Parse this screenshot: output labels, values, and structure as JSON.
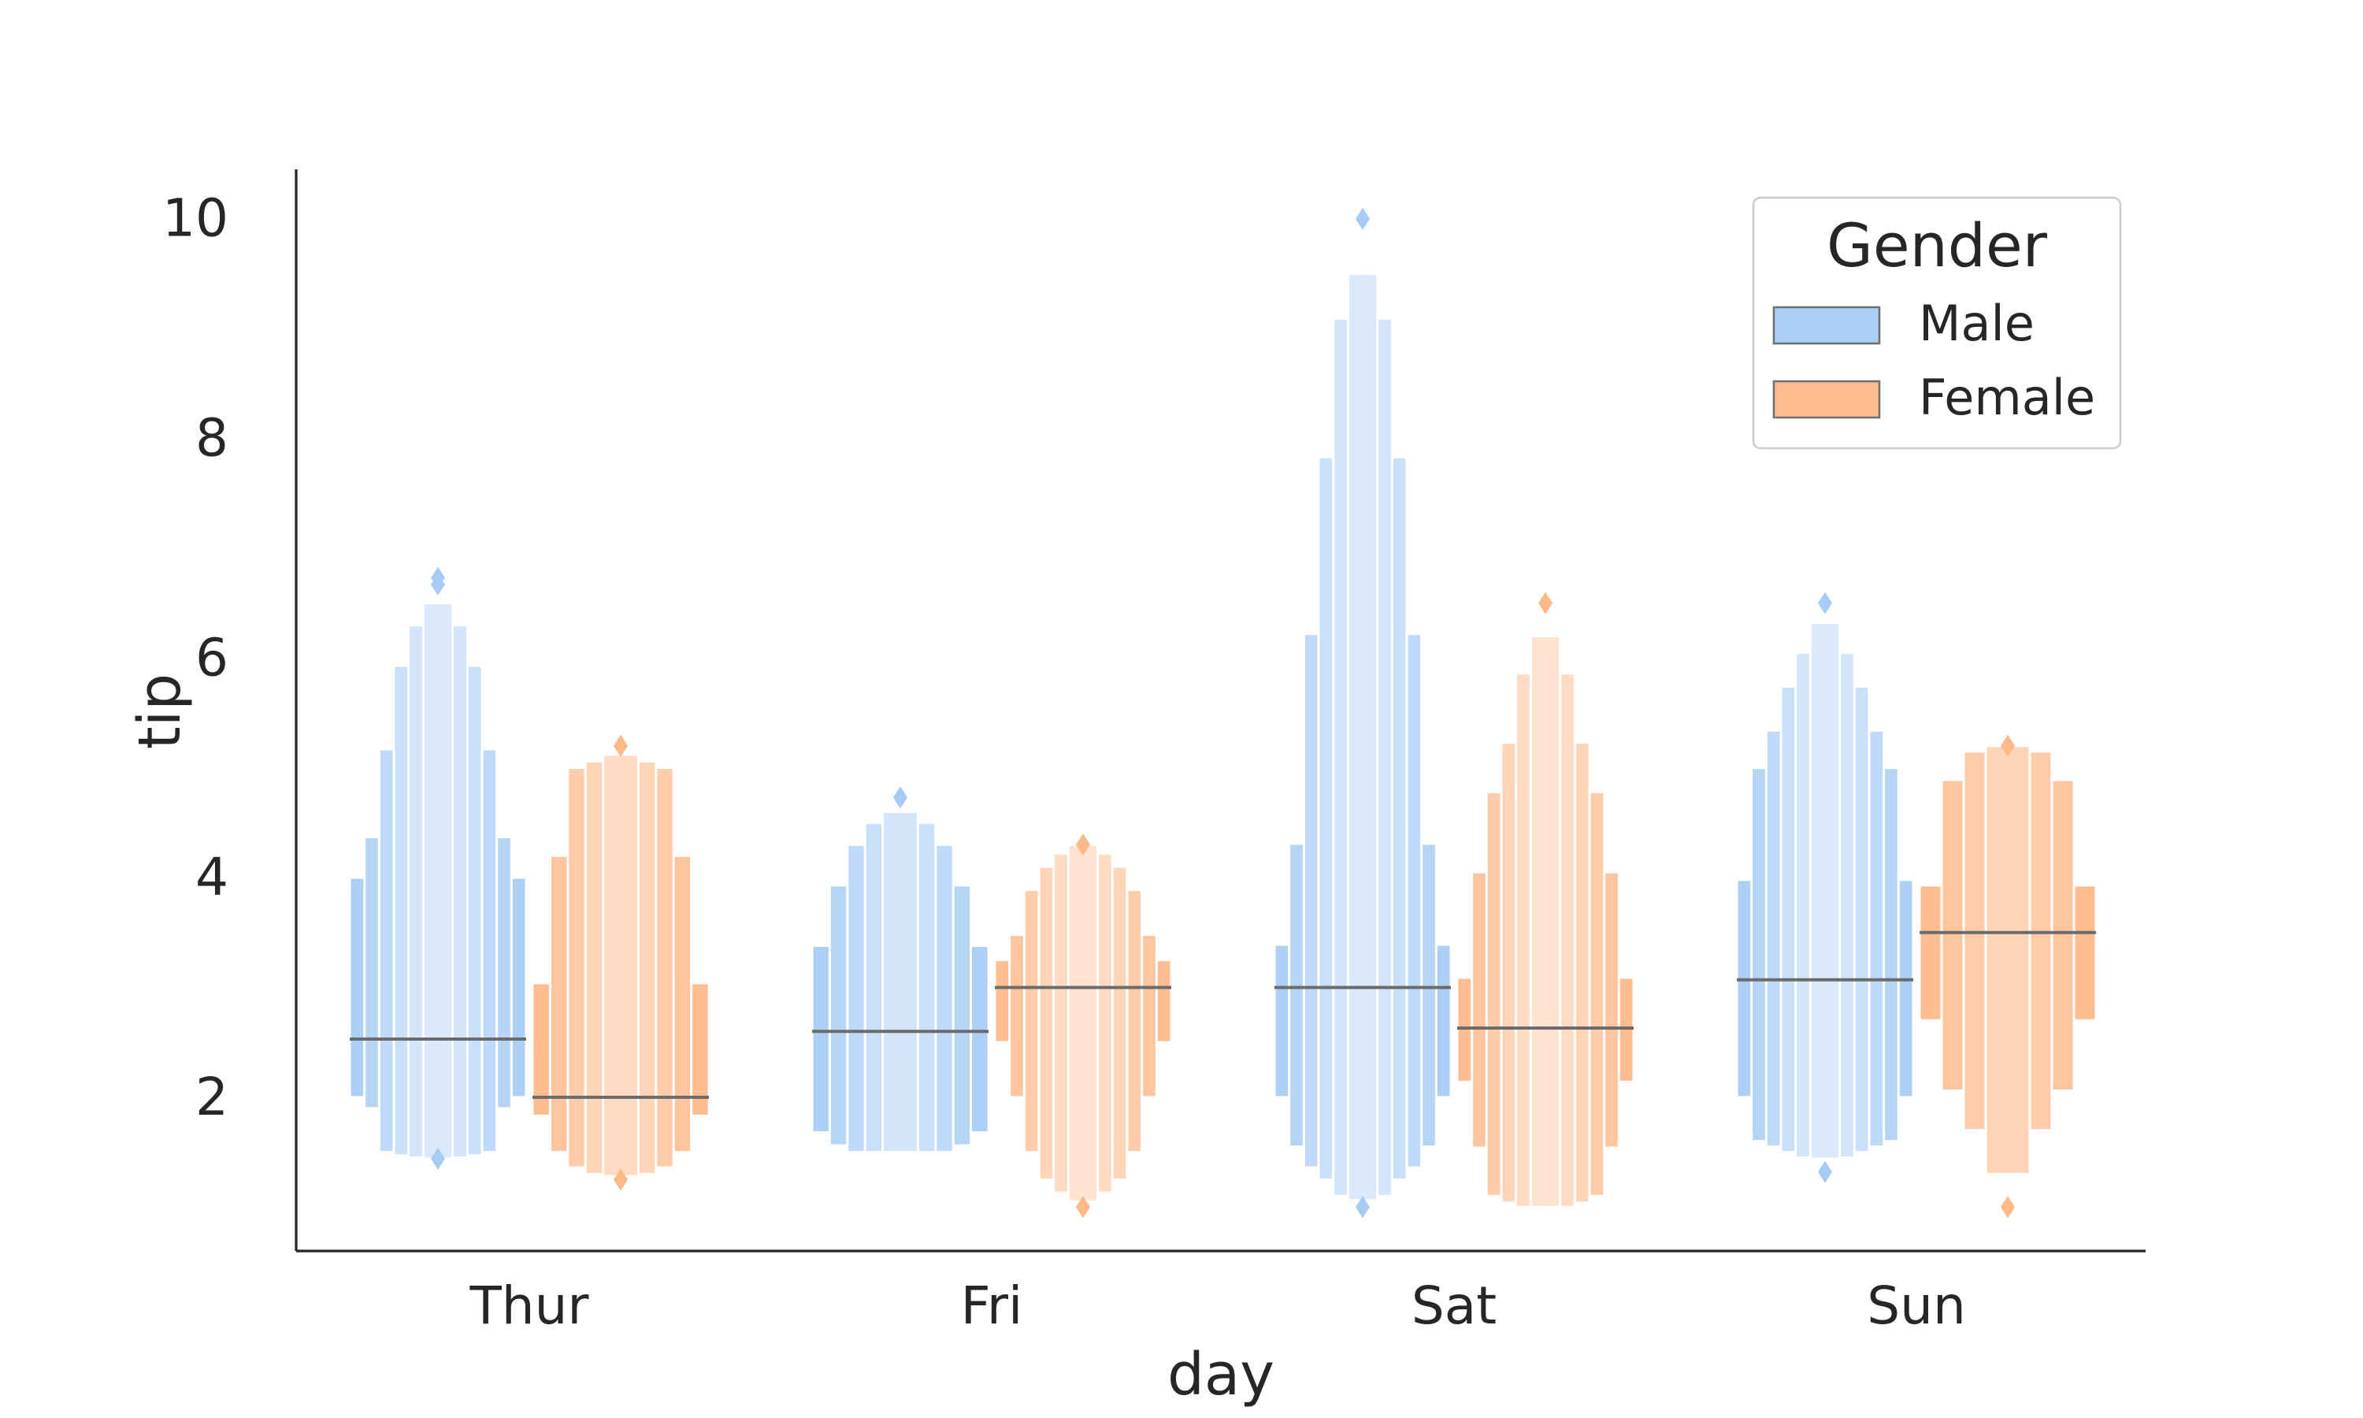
{
  "chart_data": {
    "type": "boxen",
    "xlabel": "day",
    "ylabel": "tip",
    "categories": [
      "Thur",
      "Fri",
      "Sat",
      "Sun"
    ],
    "yticks": [
      "2",
      "4",
      "6",
      "8",
      "10"
    ],
    "ylim": [
      0.6,
      10.45
    ],
    "legend": {
      "title": "Gender",
      "placement": "upper right"
    },
    "grid": false,
    "series": [
      {
        "name": "Male",
        "color": "#a1c9f4",
        "groups": [
          {
            "median": 2.53,
            "levels": [
              [
                2.0,
                4.0
              ],
              [
                1.9,
                4.37
              ],
              [
                1.5,
                5.17
              ],
              [
                1.47,
                5.93
              ],
              [
                1.45,
                6.3
              ],
              [
                1.44,
                6.5
              ]
            ],
            "outliers": [
              1.44,
              6.67,
              6.73
            ]
          },
          {
            "median": 2.6,
            "levels": [
              [
                1.68,
                3.38
              ],
              [
                1.56,
                3.93
              ],
              [
                1.5,
                4.3
              ],
              [
                1.5,
                4.5
              ],
              [
                1.5,
                4.6
              ]
            ],
            "outliers": [
              4.73
            ]
          },
          {
            "median": 3.0,
            "levels": [
              [
                2.0,
                3.39
              ],
              [
                1.55,
                4.31
              ],
              [
                1.36,
                6.22
              ],
              [
                1.25,
                7.83
              ],
              [
                1.1,
                9.09
              ],
              [
                1.06,
                9.5
              ]
            ],
            "outliers": [
              1.0,
              10.0
            ]
          },
          {
            "median": 3.07,
            "levels": [
              [
                2.0,
                3.98
              ],
              [
                1.6,
                5.0
              ],
              [
                1.55,
                5.34
              ],
              [
                1.5,
                5.74
              ],
              [
                1.45,
                6.05
              ],
              [
                1.44,
                6.32
              ]
            ],
            "outliers": [
              1.32,
              6.5
            ]
          }
        ]
      },
      {
        "name": "Female",
        "color": "#ffb482",
        "groups": [
          {
            "median": 2.0,
            "levels": [
              [
                1.83,
                3.04
              ],
              [
                1.5,
                4.2
              ],
              [
                1.36,
                5.0
              ],
              [
                1.3,
                5.06
              ],
              [
                1.28,
                5.12
              ]
            ],
            "outliers": [
              1.25,
              5.2
            ]
          },
          {
            "median": 3.0,
            "levels": [
              [
                2.5,
                3.25
              ],
              [
                2.0,
                3.48
              ],
              [
                1.5,
                3.89
              ],
              [
                1.25,
                4.1
              ],
              [
                1.13,
                4.22
              ],
              [
                1.05,
                4.3
              ]
            ],
            "outliers": [
              1.0,
              4.3
            ]
          },
          {
            "median": 2.63,
            "levels": [
              [
                2.14,
                3.09
              ],
              [
                1.54,
                4.05
              ],
              [
                1.1,
                4.78
              ],
              [
                1.04,
                5.23
              ],
              [
                1.0,
                5.86
              ],
              [
                1.0,
                6.2
              ]
            ],
            "outliers": [
              6.5
            ]
          },
          {
            "median": 3.5,
            "levels": [
              [
                2.7,
                3.93
              ],
              [
                2.06,
                4.89
              ],
              [
                1.7,
                5.15
              ],
              [
                1.3,
                5.2
              ]
            ],
            "outliers": [
              1.0,
              5.2
            ]
          }
        ]
      }
    ]
  }
}
